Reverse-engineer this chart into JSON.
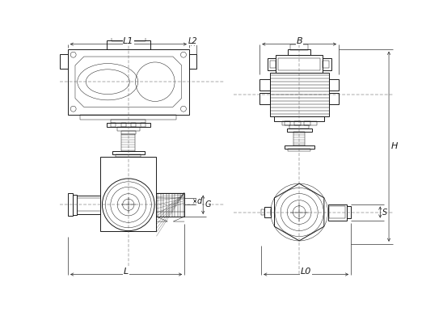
{
  "bg_color": "#ffffff",
  "line_color": "#1a1a1a",
  "lw_main": 0.7,
  "lw_thin": 0.35,
  "lw_dim": 0.45,
  "fig_width": 5.48,
  "fig_height": 3.91,
  "labels": {
    "L1": "L1",
    "L2": "L2",
    "B": "B",
    "H": "H",
    "L": "L",
    "L0": "L0",
    "d": "d",
    "G": "G",
    "S": "S"
  }
}
